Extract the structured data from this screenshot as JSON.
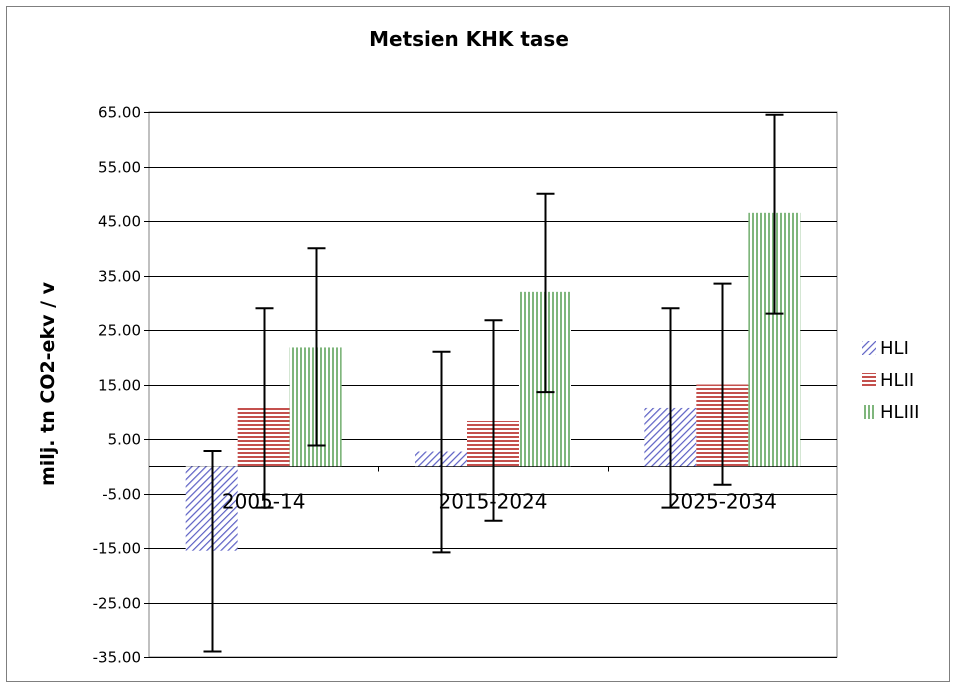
{
  "chart_data": {
    "type": "bar",
    "title": "Metsien KHK tase",
    "xlabel": "",
    "ylabel": "milj. tn CO2-ekv / v",
    "categories": [
      "2005-14",
      "2015-2024",
      "2025-2034"
    ],
    "ylim": [
      -35,
      65
    ],
    "yticks": [
      "65.00",
      "55.00",
      "45.00",
      "35.00",
      "25.00",
      "15.00",
      "5.00",
      "-5.00",
      "-15.00",
      "-25.00",
      "-35.00"
    ],
    "grid": true,
    "legend_position": "right",
    "series": [
      {
        "name": "HLI",
        "color": "#5b5fc4",
        "pattern": "diagonal",
        "values": [
          -15.5,
          2.7,
          10.7
        ],
        "error_low": [
          -34,
          -15.8,
          -7.6
        ],
        "error_high": [
          2.8,
          21,
          29
        ]
      },
      {
        "name": "HLII",
        "color": "#c4504d",
        "pattern": "horizontal",
        "values": [
          10.7,
          8.3,
          15
        ],
        "error_low": [
          -7.6,
          -10,
          -3.4
        ],
        "error_high": [
          29,
          26.8,
          33.5
        ]
      },
      {
        "name": "HLIII",
        "color": "#7fb67c",
        "pattern": "vertical",
        "values": [
          21.8,
          32,
          46.5
        ],
        "error_low": [
          3.8,
          13.6,
          28
        ],
        "error_high": [
          40,
          50,
          64.5
        ]
      }
    ]
  }
}
